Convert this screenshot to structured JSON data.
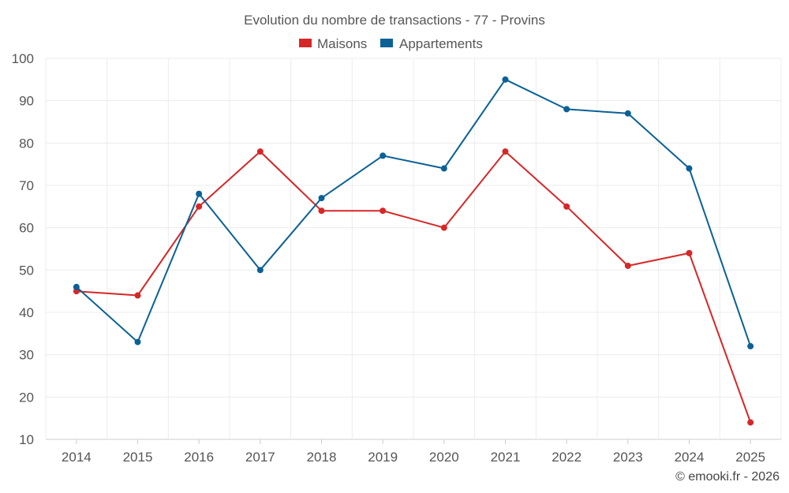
{
  "chart_data": {
    "type": "line",
    "title": "Evolution du nombre de transactions - 77 - Provins",
    "categories": [
      "2014",
      "2015",
      "2016",
      "2017",
      "2018",
      "2019",
      "2020",
      "2021",
      "2022",
      "2023",
      "2024",
      "2025"
    ],
    "series": [
      {
        "name": "Maisons",
        "color": "#d62728",
        "values": [
          45,
          44,
          65,
          78,
          64,
          64,
          60,
          78,
          65,
          51,
          54,
          14
        ]
      },
      {
        "name": "Appartements",
        "color": "#0a6196",
        "values": [
          46,
          33,
          68,
          50,
          67,
          77,
          74,
          95,
          88,
          87,
          74,
          32
        ]
      }
    ],
    "ylim": [
      10,
      100
    ],
    "yticks": [
      10,
      20,
      30,
      40,
      50,
      60,
      70,
      80,
      90,
      100
    ],
    "xlabel": "",
    "ylabel": "",
    "grid": true,
    "legend": "top-center"
  },
  "credit": "© emooki.fr - 2026"
}
